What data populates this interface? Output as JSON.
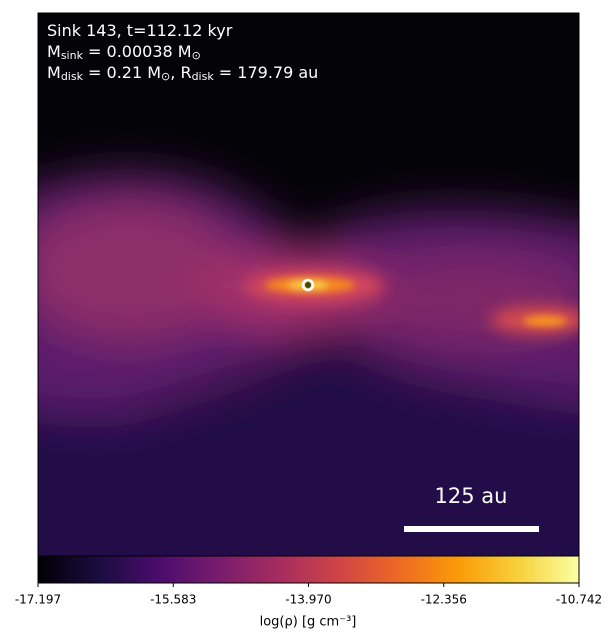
{
  "chart_data": {
    "type": "image",
    "annotation_lines": [
      [
        {
          "text": "Sink 143, t=112.12 kyr",
          "sub": false
        }
      ],
      [
        {
          "text": "M",
          "sub": false
        },
        {
          "text": "sink",
          "sub": true
        },
        {
          "text": " = 0.00038 M",
          "sub": false
        },
        {
          "text": "⊙",
          "sub": true
        }
      ],
      [
        {
          "text": "M",
          "sub": false
        },
        {
          "text": "disk",
          "sub": true
        },
        {
          "text": " = 0.21 M",
          "sub": false
        },
        {
          "text": "⊙",
          "sub": true
        },
        {
          "text": ", R",
          "sub": false
        },
        {
          "text": "disk",
          "sub": true
        },
        {
          "text": " = 179.79 au",
          "sub": false
        }
      ]
    ],
    "scale_bar_label": "125 au",
    "colorbar": {
      "colormap": "inferno",
      "clim": [
        -17.197,
        -10.742
      ],
      "ticks": [
        -17.197,
        -15.583,
        {
          "value": -13.97,
          "label": "-13.970"
        },
        -12.356,
        -10.742
      ],
      "label": "log(ρ) [g cm⁻³]"
    }
  }
}
